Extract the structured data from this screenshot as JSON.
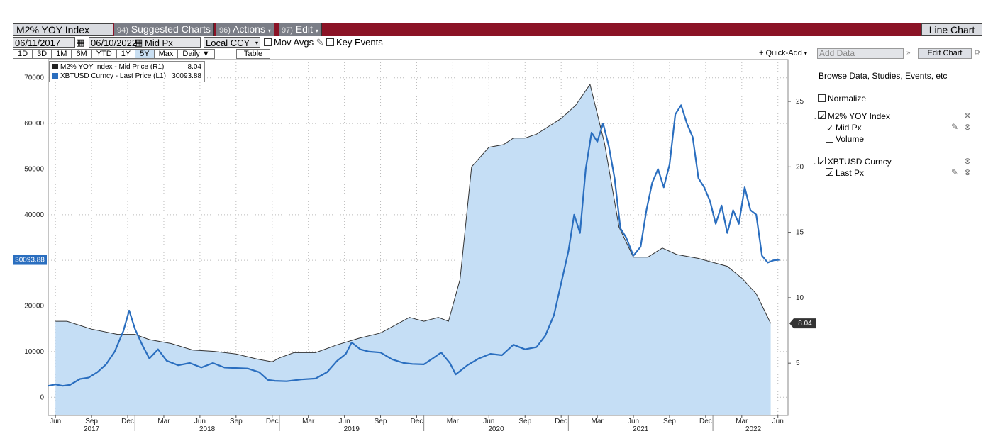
{
  "header": {
    "security": "M2% YOY Index",
    "suggested_num": "94)",
    "suggested_label": "Suggested Charts",
    "actions_num": "96)",
    "actions_label": "Actions",
    "edit_num": "97)",
    "edit_label": "Edit",
    "chart_type": "Line Chart"
  },
  "toolbar": {
    "start_date": "06/11/2017",
    "end_date": "06/10/2022",
    "date_sep": "-",
    "field": "Mid Px",
    "currency": "Local CCY",
    "mov_avgs": "Mov Avgs",
    "key_events": "Key Events",
    "periods": [
      "1D",
      "3D",
      "1M",
      "6M",
      "YTD",
      "1Y",
      "5Y",
      "Max"
    ],
    "active_period": "5Y",
    "frequency": "Daily",
    "table": "Table",
    "quick_add": "Quick-Add",
    "add_data_placeholder": "Add Data",
    "edit_chart": "Edit Chart"
  },
  "legend": {
    "items": [
      {
        "label": "M2% YOY Index - Mid Price (R1)",
        "value": "8.04",
        "color": "#222222"
      },
      {
        "label": "XBTUSD Curncy - Last Price (L1)",
        "value": "30093.88",
        "color": "#2a6ebf"
      }
    ]
  },
  "panel": {
    "browse": "Browse Data, Studies, Events, etc",
    "normalize": "Normalize",
    "sec1": "M2% YOY Index",
    "sec1_f1": "Mid Px",
    "sec1_f2": "Volume",
    "sec2": "XBTUSD Curncy",
    "sec2_f1": "Last Px"
  },
  "chart_data": {
    "type": "line",
    "left_axis": {
      "ticks": [
        0,
        10000,
        20000,
        30000,
        40000,
        50000,
        60000,
        70000
      ],
      "range": [
        -4000,
        74000
      ]
    },
    "right_axis": {
      "ticks": [
        5,
        10,
        15,
        20,
        25
      ],
      "range": [
        1,
        28.2
      ]
    },
    "last_value_left": "30093.88",
    "last_value_right": "8.04",
    "x_axis": {
      "range": [
        2017.4,
        2022.52
      ],
      "months": [
        {
          "x": 2017.45,
          "label": "Jun"
        },
        {
          "x": 2017.7,
          "label": "Sep"
        },
        {
          "x": 2017.95,
          "label": "Dec"
        },
        {
          "x": 2018.2,
          "label": "Mar"
        },
        {
          "x": 2018.45,
          "label": "Jun"
        },
        {
          "x": 2018.7,
          "label": "Sep"
        },
        {
          "x": 2018.95,
          "label": "Dec"
        },
        {
          "x": 2019.2,
          "label": "Mar"
        },
        {
          "x": 2019.45,
          "label": "Jun"
        },
        {
          "x": 2019.7,
          "label": "Sep"
        },
        {
          "x": 2019.95,
          "label": "Dec"
        },
        {
          "x": 2020.2,
          "label": "Mar"
        },
        {
          "x": 2020.45,
          "label": "Jun"
        },
        {
          "x": 2020.7,
          "label": "Sep"
        },
        {
          "x": 2020.95,
          "label": "Dec"
        },
        {
          "x": 2021.2,
          "label": "Mar"
        },
        {
          "x": 2021.45,
          "label": "Jun"
        },
        {
          "x": 2021.7,
          "label": "Sep"
        },
        {
          "x": 2021.95,
          "label": "Dec"
        },
        {
          "x": 2022.2,
          "label": "Mar"
        },
        {
          "x": 2022.45,
          "label": "Jun"
        }
      ],
      "years": [
        {
          "x": 2017.7,
          "label": "2017"
        },
        {
          "x": 2018.5,
          "label": "2018"
        },
        {
          "x": 2019.5,
          "label": "2019"
        },
        {
          "x": 2020.5,
          "label": "2020"
        },
        {
          "x": 2021.5,
          "label": "2021"
        },
        {
          "x": 2022.28,
          "label": "2022"
        }
      ],
      "year_separators": [
        2018.0,
        2019.0,
        2020.0,
        2021.0,
        2022.0
      ]
    },
    "series": [
      {
        "name": "M2% YOY Index - Mid Price (R1)",
        "axis": "right",
        "style": "area",
        "color": "#333333",
        "fill": "#c5def5",
        "x": [
          2017.45,
          2017.53,
          2017.7,
          2017.88,
          2018.0,
          2018.1,
          2018.25,
          2018.4,
          2018.55,
          2018.7,
          2018.85,
          2018.95,
          2019.0,
          2019.1,
          2019.25,
          2019.4,
          2019.55,
          2019.7,
          2019.8,
          2019.9,
          2020.0,
          2020.1,
          2020.17,
          2020.25,
          2020.33,
          2020.45,
          2020.55,
          2020.62,
          2020.7,
          2020.78,
          2020.95,
          2021.05,
          2021.15,
          2021.25,
          2021.35,
          2021.45,
          2021.55,
          2021.65,
          2021.75,
          2021.9,
          2022.0,
          2022.1,
          2022.2,
          2022.3,
          2022.4
        ],
        "y": [
          8.2,
          8.2,
          7.6,
          7.2,
          7.2,
          6.8,
          6.5,
          6.0,
          5.9,
          5.7,
          5.3,
          5.1,
          5.4,
          5.8,
          5.8,
          6.4,
          6.9,
          7.3,
          7.9,
          8.5,
          8.2,
          8.5,
          8.2,
          11.4,
          20.0,
          21.5,
          21.7,
          22.2,
          22.2,
          22.5,
          23.7,
          24.7,
          26.3,
          21.8,
          15.4,
          13.1,
          13.1,
          13.8,
          13.3,
          13.0,
          12.7,
          12.4,
          11.5,
          10.3,
          8.04
        ]
      },
      {
        "name": "XBTUSD Curncy - Last Price (L1)",
        "axis": "left",
        "style": "line",
        "color": "#2a6ebf",
        "x": [
          2017.4,
          2017.45,
          2017.5,
          2017.55,
          2017.62,
          2017.68,
          2017.74,
          2017.8,
          2017.86,
          2017.92,
          2017.96,
          2018.0,
          2018.05,
          2018.1,
          2018.16,
          2018.22,
          2018.3,
          2018.38,
          2018.46,
          2018.54,
          2018.62,
          2018.7,
          2018.78,
          2018.86,
          2018.92,
          2018.97,
          2019.05,
          2019.15,
          2019.25,
          2019.33,
          2019.4,
          2019.46,
          2019.5,
          2019.56,
          2019.62,
          2019.7,
          2019.78,
          2019.86,
          2019.92,
          2020.0,
          2020.06,
          2020.12,
          2020.18,
          2020.22,
          2020.3,
          2020.38,
          2020.46,
          2020.54,
          2020.62,
          2020.7,
          2020.78,
          2020.84,
          2020.9,
          2020.95,
          2021.0,
          2021.04,
          2021.08,
          2021.12,
          2021.16,
          2021.2,
          2021.24,
          2021.28,
          2021.32,
          2021.36,
          2021.4,
          2021.45,
          2021.5,
          2021.54,
          2021.58,
          2021.62,
          2021.66,
          2021.7,
          2021.74,
          2021.78,
          2021.82,
          2021.86,
          2021.9,
          2021.94,
          2021.98,
          2022.02,
          2022.06,
          2022.1,
          2022.14,
          2022.18,
          2022.22,
          2022.26,
          2022.3,
          2022.34,
          2022.38,
          2022.42,
          2022.46
        ],
        "y": [
          2500,
          2800,
          2500,
          2700,
          4000,
          4300,
          5500,
          7200,
          10000,
          14500,
          19000,
          15000,
          11500,
          8500,
          10500,
          8000,
          7000,
          7500,
          6500,
          7500,
          6500,
          6400,
          6300,
          5500,
          3800,
          3600,
          3500,
          3900,
          4100,
          5500,
          8000,
          9500,
          12000,
          10500,
          10000,
          9800,
          8300,
          7500,
          7300,
          7200,
          8500,
          9800,
          7500,
          5000,
          7000,
          8500,
          9500,
          9200,
          11500,
          10500,
          11000,
          13500,
          18000,
          25000,
          32000,
          40000,
          36000,
          50000,
          58000,
          56000,
          60000,
          55000,
          48000,
          37000,
          35000,
          31000,
          33000,
          41000,
          47000,
          50000,
          46000,
          51000,
          62000,
          64000,
          60000,
          57000,
          48000,
          46000,
          43000,
          38000,
          42000,
          36000,
          41000,
          38000,
          46000,
          41000,
          40000,
          31000,
          29500,
          30000,
          30100
        ]
      }
    ]
  }
}
